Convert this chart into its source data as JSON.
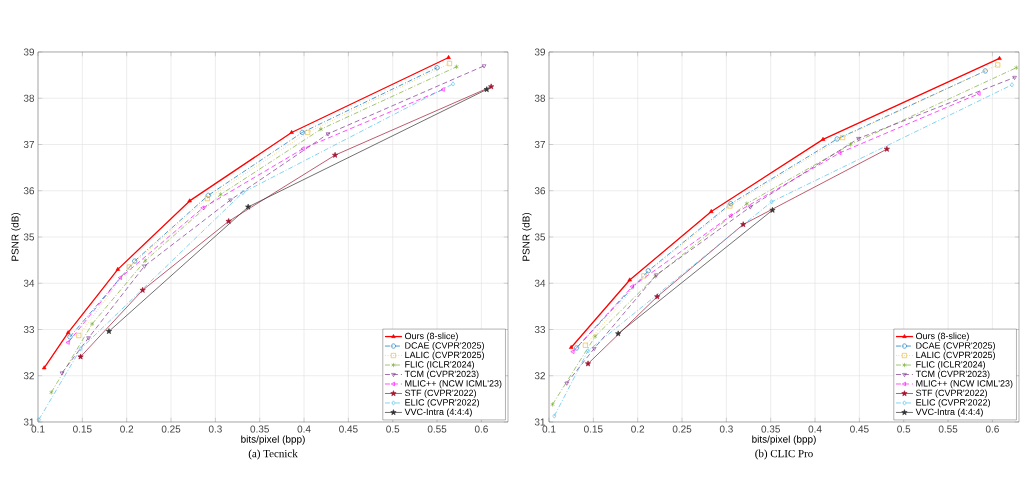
{
  "chart_data": [
    {
      "type": "line",
      "title": "(a) Tecnick",
      "xlabel": "bits/pixel (bpp)",
      "ylabel": "PSNR (dB)",
      "xlim": [
        0.1,
        0.63
      ],
      "ylim": [
        31,
        39
      ],
      "xticks": [
        0.1,
        0.15,
        0.2,
        0.25,
        0.3,
        0.35,
        0.4,
        0.45,
        0.5,
        0.55,
        0.6
      ],
      "yticks": [
        31,
        32,
        33,
        34,
        35,
        36,
        37,
        38,
        39
      ],
      "grid": true,
      "legend": "bottom right",
      "series": [
        {
          "name": "Ours (8-slice)",
          "color": "#ff0000",
          "marker": "triangle",
          "line_style": "solid",
          "x": [
            0.107,
            0.134,
            0.19,
            0.271,
            0.386,
            0.563
          ],
          "values": [
            32.17,
            32.93,
            34.3,
            35.78,
            37.26,
            38.88
          ]
        },
        {
          "name": "DCAE (CVPR'2025)",
          "color": "#0072bd",
          "marker": "circle",
          "line_style": "dashdot",
          "x": [
            0.136,
            0.209,
            0.292,
            0.398,
            0.55
          ],
          "values": [
            32.84,
            34.48,
            35.9,
            37.26,
            38.66
          ]
        },
        {
          "name": "LALIC (CVPR'2025)",
          "color": "#edb120",
          "marker": "square",
          "line_style": "dotted",
          "x": [
            0.146,
            0.203,
            0.291,
            0.404,
            0.564
          ],
          "values": [
            32.87,
            34.35,
            35.83,
            37.26,
            38.75
          ]
        },
        {
          "name": "FLIC (ICLR'2024)",
          "color": "#77ac30",
          "marker": "cross",
          "line_style": "dashdot",
          "x": [
            0.115,
            0.161,
            0.221,
            0.306,
            0.419,
            0.572
          ],
          "values": [
            31.64,
            33.12,
            34.49,
            35.92,
            37.33,
            38.68
          ]
        },
        {
          "name": "TCM (CVPR'2023)",
          "color": "#7e2f8e",
          "marker": "triangle-down",
          "line_style": "dashed",
          "x": [
            0.127,
            0.157,
            0.22,
            0.317,
            0.427,
            0.603
          ],
          "values": [
            32.06,
            32.82,
            34.37,
            35.8,
            37.23,
            38.7
          ]
        },
        {
          "name": "MLIC++ (NCW ICML'23)",
          "color": "#ff00ff",
          "marker": "triangle-left",
          "line_style": "dashed",
          "x": [
            0.134,
            0.193,
            0.286,
            0.399,
            0.557
          ],
          "values": [
            32.72,
            34.12,
            35.63,
            36.91,
            38.19
          ]
        },
        {
          "name": "STF (CVPR'2022)",
          "color": "#a2142f",
          "marker": "star",
          "line_style": "solid",
          "x": [
            0.148,
            0.218,
            0.315,
            0.435,
            0.611
          ],
          "values": [
            32.41,
            33.85,
            35.34,
            36.77,
            38.25
          ]
        },
        {
          "name": "ELIC (CVPR'2022)",
          "color": "#4dbeee",
          "marker": "diamond",
          "line_style": "dashdot",
          "x": [
            0.101,
            0.148,
            0.331,
            0.568
          ],
          "values": [
            31.05,
            32.58,
            35.96,
            38.31
          ]
        },
        {
          "name": "VVC-Intra (4:4:4)",
          "color": "#333333",
          "marker": "star",
          "line_style": "solid",
          "x": [
            0.18,
            0.337,
            0.606
          ],
          "values": [
            32.96,
            35.65,
            38.19
          ]
        }
      ]
    },
    {
      "type": "line",
      "title": "(b) CLIC Pro",
      "xlabel": "bits/pixel (bpp)",
      "ylabel": "PSNR (dB)",
      "xlim": [
        0.1,
        0.63
      ],
      "ylim": [
        31,
        39
      ],
      "xticks": [
        0.1,
        0.15,
        0.2,
        0.25,
        0.3,
        0.35,
        0.4,
        0.45,
        0.5,
        0.55,
        0.6
      ],
      "yticks": [
        31,
        32,
        33,
        34,
        35,
        36,
        37,
        38,
        39
      ],
      "grid": true,
      "legend": "bottom right",
      "series": [
        {
          "name": "Ours (8-slice)",
          "color": "#ff0000",
          "marker": "triangle",
          "line_style": "solid",
          "x": [
            0.125,
            0.191,
            0.283,
            0.409,
            0.608
          ],
          "values": [
            32.61,
            34.07,
            35.55,
            37.11,
            38.86
          ]
        },
        {
          "name": "DCAE (CVPR'2025)",
          "color": "#0072bd",
          "marker": "circle",
          "line_style": "dashdot",
          "x": [
            0.131,
            0.212,
            0.305,
            0.425,
            0.592
          ],
          "values": [
            32.6,
            34.27,
            35.72,
            37.12,
            38.59
          ]
        },
        {
          "name": "LALIC (CVPR'2025)",
          "color": "#edb120",
          "marker": "square",
          "line_style": "dotted",
          "x": [
            0.141,
            0.207,
            0.304,
            0.431,
            0.606
          ],
          "values": [
            32.66,
            34.16,
            35.67,
            37.15,
            38.72
          ]
        },
        {
          "name": "FLIC (ICLR'2024)",
          "color": "#77ac30",
          "marker": "cross",
          "line_style": "dashdot",
          "x": [
            0.104,
            0.152,
            0.22,
            0.323,
            0.44,
            0.627
          ],
          "values": [
            31.38,
            32.85,
            34.15,
            35.72,
            37.0,
            38.66
          ]
        },
        {
          "name": "TCM (CVPR'2023)",
          "color": "#7e2f8e",
          "marker": "triangle-down",
          "line_style": "dashed",
          "x": [
            0.12,
            0.151,
            0.221,
            0.327,
            0.449,
            0.625
          ],
          "values": [
            31.84,
            32.59,
            34.18,
            35.65,
            37.13,
            38.45
          ]
        },
        {
          "name": "MLIC++ (NCW ICML'23)",
          "color": "#ff00ff",
          "marker": "triangle-left",
          "line_style": "dashed",
          "x": [
            0.127,
            0.194,
            0.305,
            0.428,
            0.585
          ],
          "values": [
            32.52,
            33.93,
            35.46,
            36.82,
            38.1
          ]
        },
        {
          "name": "STF (CVPR'2022)",
          "color": "#a2142f",
          "marker": "star",
          "line_style": "solid",
          "x": [
            0.144,
            0.222,
            0.319,
            0.481
          ],
          "values": [
            32.26,
            33.71,
            35.27,
            36.9
          ]
        },
        {
          "name": "ELIC (CVPR'2022)",
          "color": "#4dbeee",
          "marker": "diamond",
          "line_style": "dashdot",
          "x": [
            0.106,
            0.144,
            0.351,
            0.622
          ],
          "values": [
            31.13,
            32.54,
            35.76,
            38.29
          ]
        },
        {
          "name": "VVC-Intra (4:4:4)",
          "color": "#333333",
          "marker": "star",
          "line_style": "solid",
          "x": [
            0.178,
            0.352
          ],
          "values": [
            32.91,
            35.58
          ]
        }
      ]
    }
  ]
}
